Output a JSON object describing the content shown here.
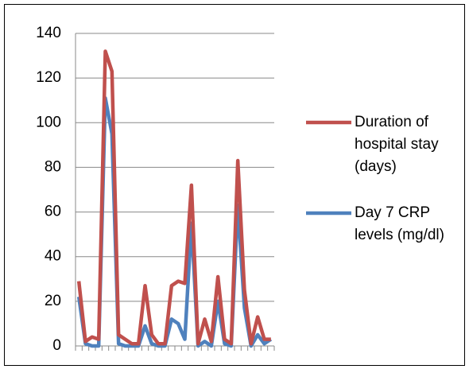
{
  "chart_data": {
    "type": "line",
    "categories": [
      null,
      null,
      null,
      null,
      null,
      null,
      null,
      null,
      null,
      null,
      null,
      null,
      null,
      null,
      null,
      null,
      null,
      null,
      null,
      null,
      null,
      null,
      null,
      null,
      null,
      null,
      null,
      null,
      null,
      null
    ],
    "series": [
      {
        "name": "Duration of hospital stay (days)",
        "color": "#c0504d",
        "values": [
          29,
          2,
          4,
          3,
          132,
          123,
          5,
          3,
          1,
          1,
          27,
          5,
          1,
          1,
          27,
          29,
          28,
          72,
          1,
          12,
          2,
          31,
          3,
          1,
          83,
          25,
          1,
          13,
          3,
          3
        ]
      },
      {
        "name": "Day 7 CRP levels (mg/dl)",
        "color": "#4f81bd",
        "values": [
          22,
          1,
          0,
          0,
          111,
          95,
          1,
          0,
          0,
          0,
          9,
          1,
          0,
          0,
          12,
          10,
          3,
          55,
          0,
          2,
          0,
          20,
          1,
          0,
          63,
          17,
          0,
          5,
          1,
          3
        ]
      }
    ],
    "ylim": [
      0,
      140
    ],
    "yticks": [
      0,
      20,
      40,
      60,
      80,
      100,
      120,
      140
    ],
    "grid": true,
    "legend": "right"
  }
}
